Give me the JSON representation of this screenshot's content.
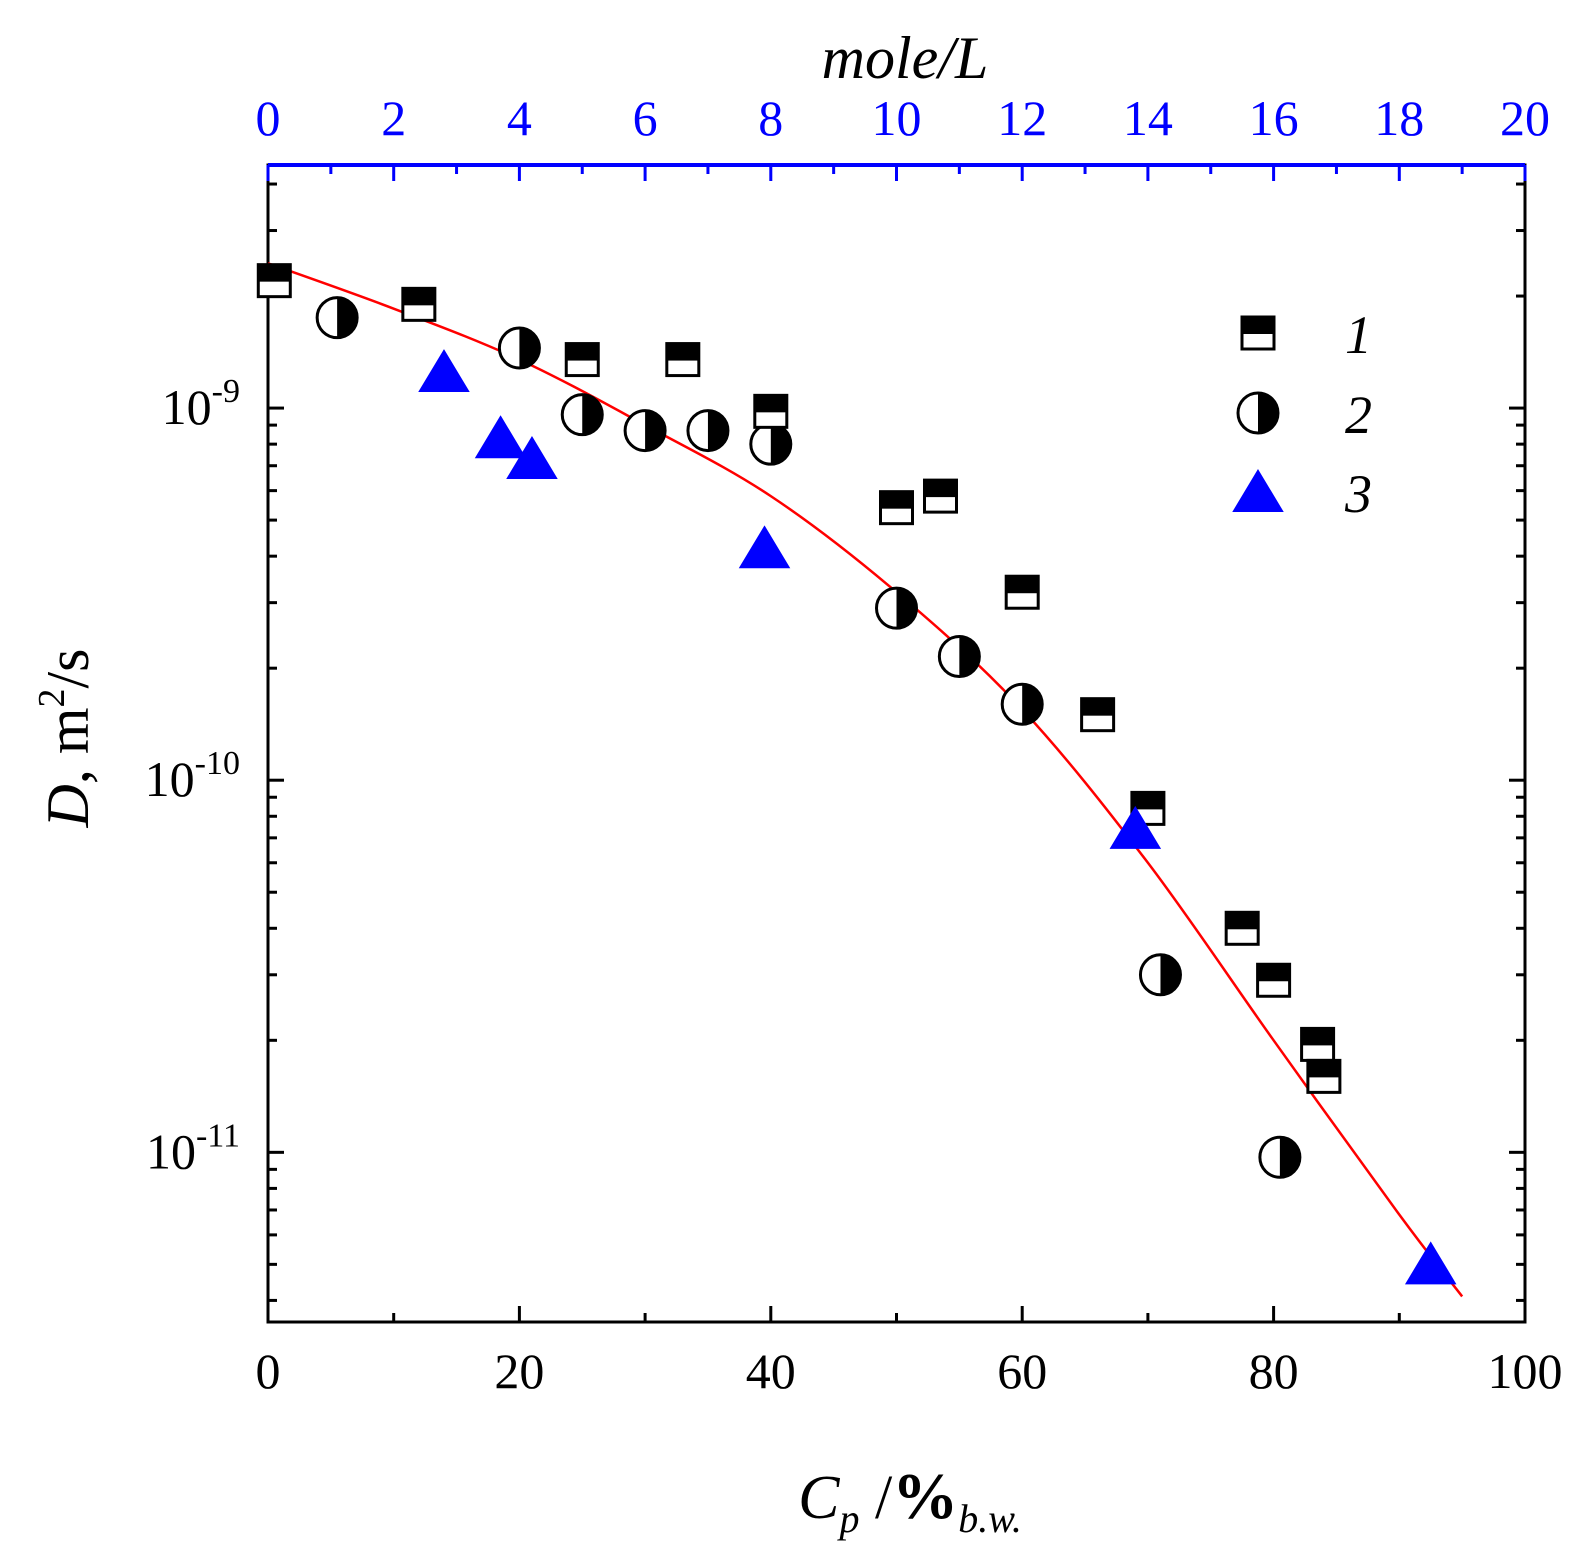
{
  "chart_data": {
    "type": "scatter",
    "x_axis": {
      "title_main": "C",
      "title_sub": "p",
      "title_slash": " /",
      "title_unit": "%",
      "title_unit_sub": "b.w.",
      "range": [
        0,
        100
      ],
      "ticks": [
        0,
        20,
        40,
        60,
        80,
        100
      ],
      "tick_labels": [
        "0",
        "20",
        "40",
        "60",
        "80",
        "100"
      ],
      "minor_step": 10
    },
    "x2_axis": {
      "title": "mole/L",
      "range": [
        0,
        20
      ],
      "ticks": [
        0,
        2,
        4,
        6,
        8,
        10,
        12,
        14,
        16,
        18,
        20
      ],
      "tick_labels": [
        "0",
        "2",
        "4",
        "6",
        "8",
        "10",
        "12",
        "14",
        "16",
        "18",
        "20"
      ],
      "minor_step": 1,
      "color": "#0000ff"
    },
    "y_axis": {
      "title_italic": "D",
      "title_rest": ", m",
      "title_sup": "2",
      "title_end": "/s",
      "scale": "log",
      "range": [
        3.5e-12,
        4.5e-09
      ],
      "ticks": [
        {
          "value": 1e-09,
          "base": "10",
          "exp": "-9"
        },
        {
          "value": 1e-10,
          "base": "10",
          "exp": "-10"
        },
        {
          "value": 1e-11,
          "base": "10",
          "exp": "-11"
        }
      ]
    },
    "series": [
      {
        "name": "1",
        "marker": "half-filled-square",
        "color": "#000000",
        "points": [
          [
            0.5,
            2.2e-09
          ],
          [
            12,
            1.9e-09
          ],
          [
            25,
            1.35e-09
          ],
          [
            33,
            1.35e-09
          ],
          [
            40,
            9.8e-10
          ],
          [
            50,
            5.4e-10
          ],
          [
            53.5,
            5.8e-10
          ],
          [
            60,
            3.2e-10
          ],
          [
            66,
            1.5e-10
          ],
          [
            70,
            8.4e-11
          ],
          [
            77.5,
            4e-11
          ],
          [
            80,
            2.9e-11
          ],
          [
            83.5,
            1.95e-11
          ],
          [
            84,
            1.6e-11
          ]
        ]
      },
      {
        "name": "2",
        "marker": "half-filled-circle",
        "color": "#000000",
        "points": [
          [
            5.5,
            1.75e-09
          ],
          [
            20,
            1.45e-09
          ],
          [
            25,
            9.6e-10
          ],
          [
            30,
            8.7e-10
          ],
          [
            35,
            8.7e-10
          ],
          [
            40,
            8e-10
          ],
          [
            50,
            2.9e-10
          ],
          [
            55,
            2.15e-10
          ],
          [
            60,
            1.6e-10
          ],
          [
            71,
            3e-11
          ],
          [
            80.5,
            9.7e-12
          ]
        ]
      },
      {
        "name": "3",
        "marker": "filled-triangle",
        "color": "#0000ff",
        "points": [
          [
            14,
            1.25e-09
          ],
          [
            18.5,
            8.3e-10
          ],
          [
            21,
            7.3e-10
          ],
          [
            39.5,
            4.2e-10
          ],
          [
            69,
            7.4e-11
          ],
          [
            92.5,
            5e-12
          ]
        ]
      }
    ],
    "fit_line": {
      "color": "#ff0000",
      "points": [
        [
          0,
          2.45e-09
        ],
        [
          10,
          1.85e-09
        ],
        [
          20,
          1.35e-09
        ],
        [
          30,
          9e-10
        ],
        [
          40,
          5.8e-10
        ],
        [
          50,
          3.2e-10
        ],
        [
          60,
          1.55e-10
        ],
        [
          70,
          6e-11
        ],
        [
          80,
          2e-11
        ],
        [
          90,
          6.8e-12
        ],
        [
          95,
          4.1e-12
        ]
      ]
    },
    "legend": {
      "position": "top-right",
      "labels": [
        "1",
        "2",
        "3"
      ]
    }
  }
}
